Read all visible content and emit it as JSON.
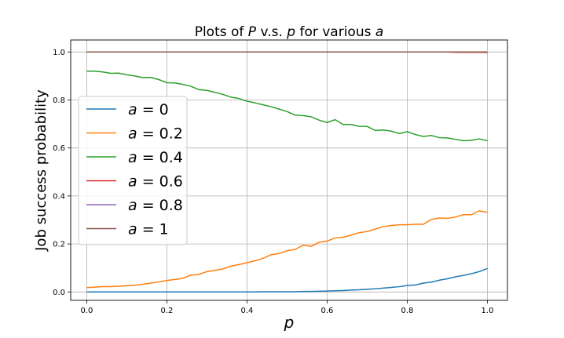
{
  "chart_data": {
    "type": "line",
    "title_parts": [
      {
        "text": "Plots of ",
        "italic": false
      },
      {
        "text": "P",
        "italic": true
      },
      {
        "text": " v.s. ",
        "italic": false
      },
      {
        "text": "p",
        "italic": true
      },
      {
        "text": " for various ",
        "italic": false
      },
      {
        "text": "a",
        "italic": true
      }
    ],
    "xlabel": "p",
    "ylabel": "Job success probability",
    "xlim": [
      -0.04,
      1.05
    ],
    "ylim": [
      -0.035,
      1.05
    ],
    "xticks": [
      0.0,
      0.2,
      0.4,
      0.6,
      0.8,
      1.0
    ],
    "xtick_labels": [
      "0.0",
      "0.2",
      "0.4",
      "0.6",
      "0.8",
      "1.0"
    ],
    "yticks": [
      0.0,
      0.2,
      0.4,
      0.6,
      0.8,
      1.0
    ],
    "ytick_labels": [
      "0.0",
      "0.2",
      "0.4",
      "0.6",
      "0.8",
      "1.0"
    ],
    "grid": true,
    "legend_position": "center-left",
    "x": [
      0.0,
      0.02,
      0.04,
      0.06,
      0.08,
      0.1,
      0.12,
      0.14,
      0.16,
      0.18,
      0.2,
      0.22,
      0.24,
      0.26,
      0.28,
      0.3,
      0.32,
      0.34,
      0.36,
      0.38,
      0.4,
      0.42,
      0.44,
      0.46,
      0.48,
      0.5,
      0.52,
      0.54,
      0.56,
      0.58,
      0.6,
      0.62,
      0.64,
      0.66,
      0.68,
      0.7,
      0.72,
      0.74,
      0.76,
      0.78,
      0.8,
      0.82,
      0.84,
      0.86,
      0.88,
      0.9,
      0.92,
      0.94,
      0.96,
      0.98,
      1.0
    ],
    "series": [
      {
        "name": "a = 0",
        "legend_var": "a",
        "legend_value": "0",
        "color": "#1f77b4",
        "values": [
          0.0,
          0.0,
          0.0,
          0.0,
          0.0,
          0.0,
          0.0,
          0.0,
          0.0,
          0.0,
          0.0,
          0.0,
          0.0,
          0.0,
          0.0,
          0.0,
          0.0,
          0.0,
          0.0,
          0.0,
          0.0,
          0.0,
          0.001,
          0.001,
          0.001,
          0.001,
          0.001,
          0.002,
          0.002,
          0.003,
          0.004,
          0.005,
          0.006,
          0.008,
          0.009,
          0.011,
          0.013,
          0.016,
          0.019,
          0.022,
          0.027,
          0.029,
          0.037,
          0.041,
          0.049,
          0.055,
          0.063,
          0.069,
          0.076,
          0.085,
          0.098
        ]
      },
      {
        "name": "a = 0.2",
        "legend_var": "a",
        "legend_value": "0.2",
        "color": "#ff7f0e",
        "values": [
          0.018,
          0.02,
          0.022,
          0.022,
          0.024,
          0.026,
          0.028,
          0.032,
          0.037,
          0.042,
          0.048,
          0.052,
          0.057,
          0.07,
          0.073,
          0.085,
          0.09,
          0.096,
          0.108,
          0.114,
          0.122,
          0.13,
          0.14,
          0.155,
          0.16,
          0.172,
          0.177,
          0.195,
          0.19,
          0.207,
          0.212,
          0.225,
          0.228,
          0.237,
          0.247,
          0.252,
          0.262,
          0.272,
          0.277,
          0.28,
          0.28,
          0.282,
          0.282,
          0.302,
          0.308,
          0.307,
          0.312,
          0.322,
          0.322,
          0.338,
          0.332
        ]
      },
      {
        "name": "a = 0.4",
        "legend_var": "a",
        "legend_value": "0.4",
        "color": "#2ca02c",
        "values": [
          0.92,
          0.92,
          0.917,
          0.911,
          0.912,
          0.905,
          0.9,
          0.893,
          0.894,
          0.885,
          0.872,
          0.871,
          0.865,
          0.857,
          0.843,
          0.84,
          0.832,
          0.823,
          0.812,
          0.806,
          0.795,
          0.788,
          0.78,
          0.772,
          0.762,
          0.752,
          0.737,
          0.735,
          0.73,
          0.716,
          0.706,
          0.718,
          0.698,
          0.698,
          0.69,
          0.69,
          0.673,
          0.675,
          0.67,
          0.66,
          0.668,
          0.656,
          0.648,
          0.652,
          0.643,
          0.642,
          0.636,
          0.63,
          0.632,
          0.638,
          0.63
        ]
      },
      {
        "name": "a = 0.6",
        "legend_var": "a",
        "legend_value": "0.6",
        "color": "#d62728",
        "values": [
          1.0,
          1.0,
          1.0,
          1.0,
          1.0,
          1.0,
          1.0,
          1.0,
          1.0,
          1.0,
          1.0,
          1.0,
          1.0,
          1.0,
          1.0,
          1.0,
          1.0,
          1.0,
          1.0,
          1.0,
          1.0,
          1.0,
          1.0,
          1.0,
          1.0,
          1.0,
          1.0,
          1.0,
          1.0,
          1.0,
          1.0,
          1.0,
          1.0,
          1.0,
          1.0,
          1.0,
          1.0,
          1.0,
          1.0,
          1.0,
          1.0,
          1.0,
          1.0,
          1.0,
          1.0,
          1.0,
          0.999,
          0.999,
          0.999,
          0.999,
          0.998
        ]
      },
      {
        "name": "a = 0.8",
        "legend_var": "a",
        "legend_value": "0.8",
        "color": "#9467bd",
        "values": [
          1.0,
          1.0,
          1.0,
          1.0,
          1.0,
          1.0,
          1.0,
          1.0,
          1.0,
          1.0,
          1.0,
          1.0,
          1.0,
          1.0,
          1.0,
          1.0,
          1.0,
          1.0,
          1.0,
          1.0,
          1.0,
          1.0,
          1.0,
          1.0,
          1.0,
          1.0,
          1.0,
          1.0,
          1.0,
          1.0,
          1.0,
          1.0,
          1.0,
          1.0,
          1.0,
          1.0,
          1.0,
          1.0,
          1.0,
          1.0,
          1.0,
          1.0,
          1.0,
          1.0,
          1.0,
          1.0,
          1.0,
          1.0,
          1.0,
          1.0,
          1.0
        ]
      },
      {
        "name": "a = 1",
        "legend_var": "a",
        "legend_value": "1",
        "color": "#8c564b",
        "values": [
          1.0,
          1.0,
          1.0,
          1.0,
          1.0,
          1.0,
          1.0,
          1.0,
          1.0,
          1.0,
          1.0,
          1.0,
          1.0,
          1.0,
          1.0,
          1.0,
          1.0,
          1.0,
          1.0,
          1.0,
          1.0,
          1.0,
          1.0,
          1.0,
          1.0,
          1.0,
          1.0,
          1.0,
          1.0,
          1.0,
          1.0,
          1.0,
          1.0,
          1.0,
          1.0,
          1.0,
          1.0,
          1.0,
          1.0,
          1.0,
          1.0,
          1.0,
          1.0,
          1.0,
          1.0,
          1.0,
          1.0,
          1.0,
          1.0,
          1.0,
          1.0
        ]
      }
    ]
  }
}
